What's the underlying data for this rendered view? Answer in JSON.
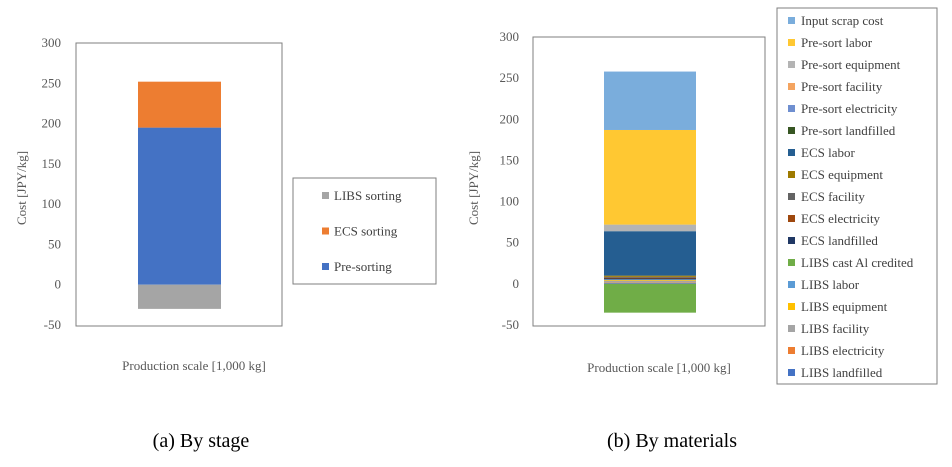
{
  "chart_data": [
    {
      "type": "bar",
      "stacked": true,
      "title": "",
      "xlabel": "Production scale [1,000 kg]",
      "ylabel": "Cost [JPY/kg]",
      "ylim": [
        -50,
        300
      ],
      "yticks": [
        300,
        250,
        200,
        150,
        100,
        50,
        0,
        -50
      ],
      "grid": false,
      "legend_position": "right",
      "caption": "(a) By stage",
      "series": [
        {
          "name": "LIBS sorting",
          "value": -30,
          "color": "#a5a5a5"
        },
        {
          "name": "ECS sorting",
          "value": 57,
          "color": "#ed7d31"
        },
        {
          "name": "Pre-sorting",
          "value": 195,
          "color": "#4472c4"
        }
      ]
    },
    {
      "type": "bar",
      "stacked": true,
      "title": "",
      "xlabel": "Production scale [1,000 kg]",
      "ylabel": "Cost [JPY/kg]",
      "ylim": [
        -50,
        300
      ],
      "yticks": [
        300,
        250,
        200,
        150,
        100,
        50,
        0,
        -50
      ],
      "grid": false,
      "legend_position": "right",
      "caption": "(b) By materials",
      "series": [
        {
          "name": "Input scrap cost",
          "value": 71,
          "color": "#7aaddc"
        },
        {
          "name": "Pre-sort labor",
          "value": 115,
          "color": "#ffc832"
        },
        {
          "name": "Pre-sort equipment",
          "value": 8,
          "color": "#b4b4b4"
        },
        {
          "name": "Pre-sort facility",
          "value": 0,
          "color": "#f4a460"
        },
        {
          "name": "Pre-sort electricity",
          "value": 0,
          "color": "#6f8fd0"
        },
        {
          "name": "Pre-sort landfilled",
          "value": 0,
          "color": "#375623"
        },
        {
          "name": "ECS labor",
          "value": 54,
          "color": "#255e91"
        },
        {
          "name": "ECS equipment",
          "value": 1.5,
          "color": "#9e7a00"
        },
        {
          "name": "ECS facility",
          "value": 1,
          "color": "#636363"
        },
        {
          "name": "ECS electricity",
          "value": 1,
          "color": "#9e480e"
        },
        {
          "name": "ECS landfilled",
          "value": 1,
          "color": "#203864"
        },
        {
          "name": "LIBS cast Al credited",
          "value": -35,
          "color": "#70ad47"
        },
        {
          "name": "LIBS labor",
          "value": 1,
          "color": "#5b9bd5"
        },
        {
          "name": "LIBS equipment",
          "value": 1,
          "color": "#ffc000"
        },
        {
          "name": "LIBS facility",
          "value": 2,
          "color": "#a5a5a5"
        },
        {
          "name": "LIBS electricity",
          "value": 0.5,
          "color": "#ed7d31"
        },
        {
          "name": "LIBS landfilled",
          "value": 1,
          "color": "#4472c4"
        }
      ]
    }
  ]
}
